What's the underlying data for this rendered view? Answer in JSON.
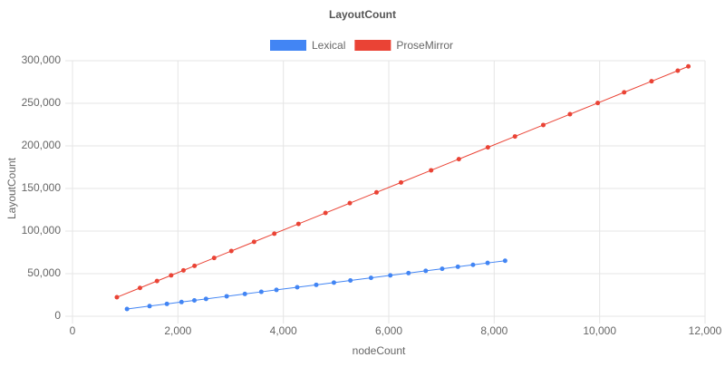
{
  "chart_data": {
    "type": "line",
    "title": "LayoutCount",
    "x_label": "nodeCount",
    "y_label": "LayoutCount",
    "xlim": [
      0,
      12000
    ],
    "xticks": [
      0,
      {
        "value": 2000,
        "label": "2,000"
      },
      {
        "value": 4000,
        "label": "4,000"
      },
      {
        "value": 6000,
        "label": "6,000"
      },
      {
        "value": 8000,
        "label": "8,000"
      },
      {
        "value": 10000,
        "label": "10,000"
      },
      {
        "value": 12000,
        "label": "12,000"
      }
    ],
    "ylim": [
      0,
      300000
    ],
    "yticks": [
      0,
      {
        "value": 50000,
        "label": "50,000"
      },
      {
        "value": 100000,
        "label": "100,000"
      },
      {
        "value": 150000,
        "label": "150,000"
      },
      {
        "value": 200000,
        "label": "200,000"
      },
      {
        "value": 250000,
        "label": "250,000"
      },
      {
        "value": 300000,
        "label": "300,000"
      }
    ],
    "grid": true,
    "legend": "top",
    "series": [
      {
        "name": "Lexical",
        "color": "#4285f4",
        "x": [
          1034,
          1462,
          1791,
          2068,
          2312,
          2533,
          2925,
          3270,
          3582,
          3869,
          4263,
          4624,
          4959,
          5272,
          5663,
          6029,
          6374,
          6701,
          7013,
          7311,
          7598,
          7875,
          8207
        ],
        "values": [
          8530,
          11910,
          14510,
          16700,
          18630,
          20370,
          23470,
          26190,
          28660,
          30930,
          34040,
          36890,
          39540,
          42010,
          45100,
          47990,
          50710,
          53300,
          55760,
          58120,
          60380,
          62570,
          65190
        ]
      },
      {
        "name": "ProseMirror",
        "color": "#ea4335",
        "x": [
          842,
          1280,
          1603,
          1871,
          2105,
          2315,
          2687,
          3013,
          3445,
          3829,
          4287,
          4799,
          5261,
          5767,
          6232,
          6803,
          7329,
          7880,
          8394,
          8931,
          9437,
          9964,
          10465,
          10985,
          11482,
          11683
        ],
        "values": [
          22300,
          33250,
          41330,
          48030,
          53880,
          59130,
          68430,
          76580,
          87380,
          96980,
          108430,
          121230,
          132780,
          145430,
          157050,
          171330,
          184480,
          198250,
          211100,
          224530,
          237180,
          250350,
          262880,
          275880,
          288300,
          293330
        ]
      }
    ]
  }
}
